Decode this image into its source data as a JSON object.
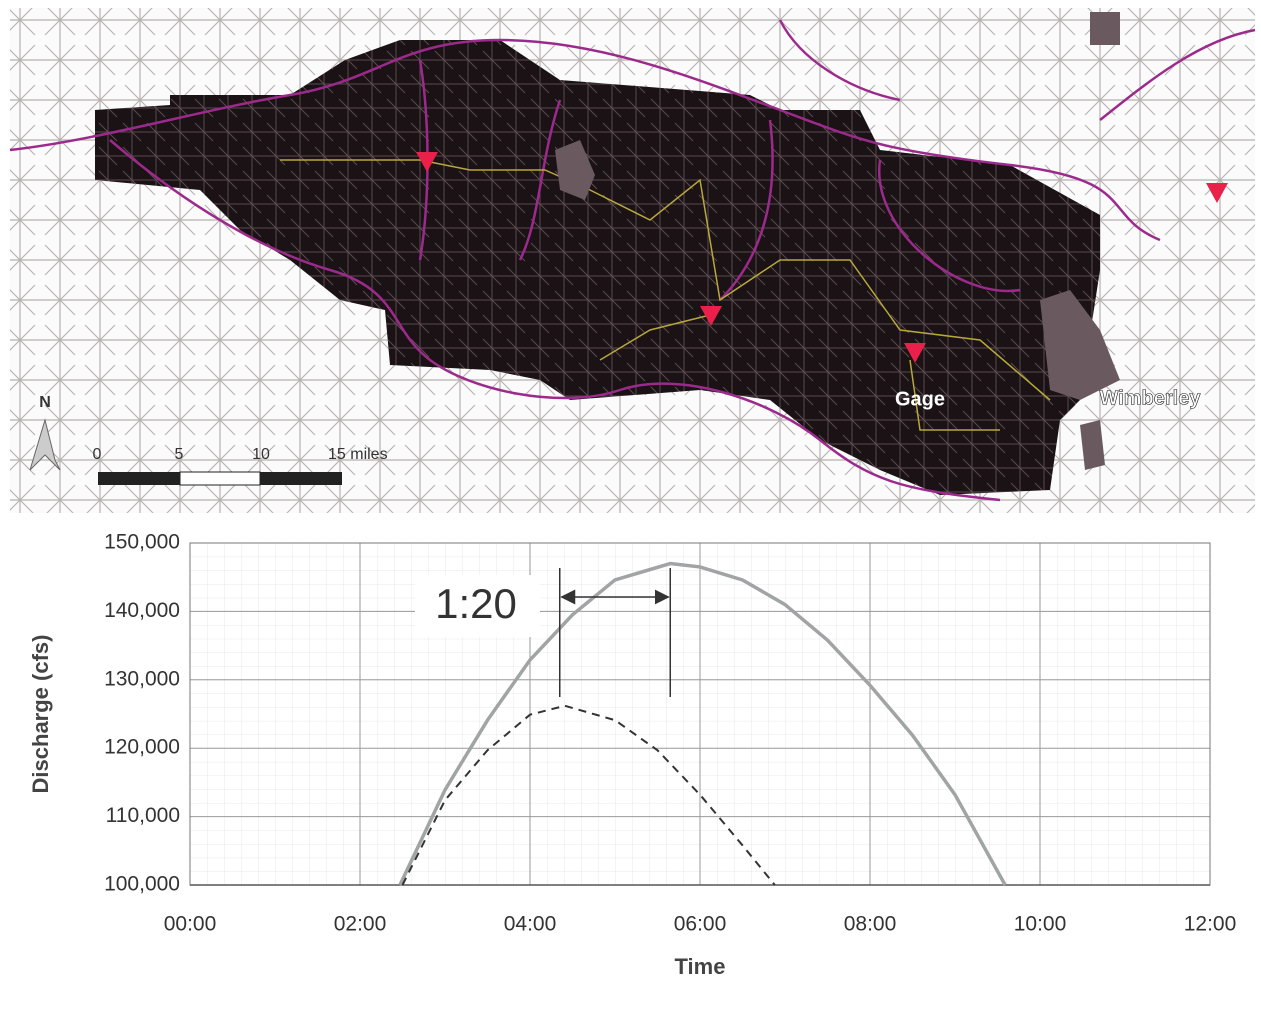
{
  "map": {
    "north": "N",
    "scale_labels": [
      "0",
      "5",
      "10",
      "15 miles"
    ],
    "places": [
      "Gage",
      "Wimberley"
    ]
  },
  "chart_data": {
    "type": "line",
    "xlabel": "Time",
    "ylabel": "Discharge (cfs)",
    "xlim": [
      0,
      12
    ],
    "xticks": [
      {
        "value": 0,
        "label": "00:00"
      },
      {
        "value": 2,
        "label": "02:00"
      },
      {
        "value": 4,
        "label": "04:00"
      },
      {
        "value": 6,
        "label": "06:00"
      },
      {
        "value": 8,
        "label": "08:00"
      },
      {
        "value": 10,
        "label": "10:00"
      },
      {
        "value": 12,
        "label": "12:00"
      }
    ],
    "ylim": [
      100000,
      150000
    ],
    "yticks": [
      {
        "value": 100000,
        "label": "100,000"
      },
      {
        "value": 110000,
        "label": "110,000"
      },
      {
        "value": 120000,
        "label": "120,000"
      },
      {
        "value": 130000,
        "label": "130,000"
      },
      {
        "value": 140000,
        "label": "140,000"
      },
      {
        "value": 150000,
        "label": "150,000"
      }
    ],
    "grid": true,
    "series": [
      {
        "color": "#a0a4a4",
        "dash": false,
        "x": [
          2.47,
          3,
          3.5,
          4,
          4.5,
          5,
          5.65,
          6,
          6.5,
          7,
          7.5,
          8,
          8.5,
          9,
          9.59
        ],
        "values": [
          100000,
          113900,
          124100,
          132900,
          139500,
          144600,
          147000,
          146500,
          144600,
          141000,
          135800,
          129200,
          121900,
          113200,
          100000
        ]
      },
      {
        "color": "#333333",
        "dash": true,
        "x": [
          2.5,
          3,
          3.5,
          4,
          4.41,
          5,
          5.5,
          6,
          6.5,
          6.88
        ],
        "values": [
          100000,
          112400,
          119700,
          124900,
          126200,
          124100,
          119700,
          113200,
          105800,
          100000
        ]
      }
    ],
    "annotation": {
      "text": "1:20",
      "x": [
        4.35,
        5.65
      ]
    }
  }
}
